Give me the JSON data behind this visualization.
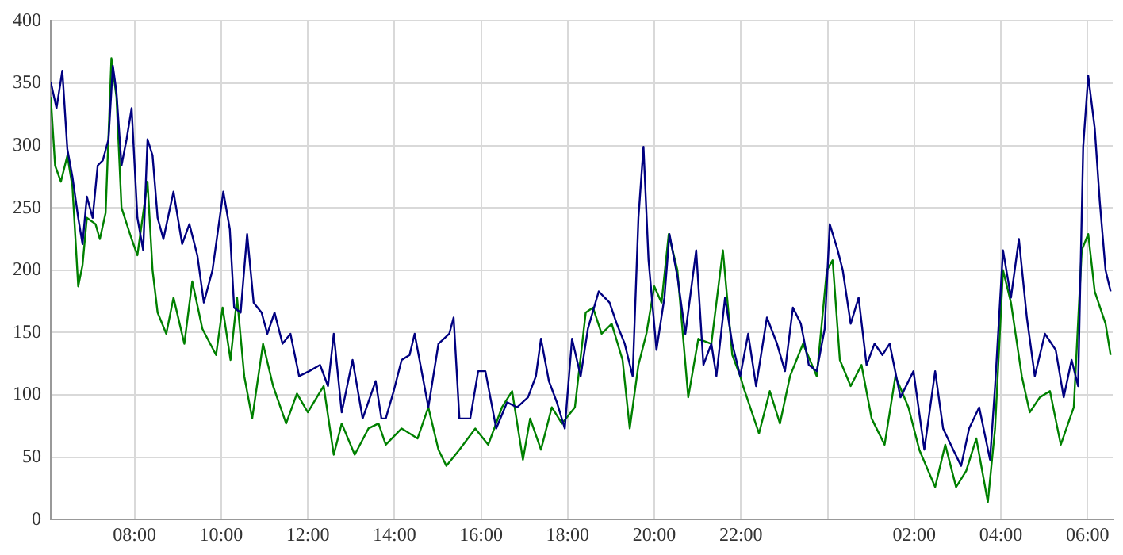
{
  "chart_data": {
    "type": "line",
    "xlim": [
      "--01-01T06:04",
      "--01-02T06:36"
    ],
    "ylim": [
      0,
      400
    ],
    "xticks": [
      {
        "value": "--01-01T08:00",
        "label": "08:00"
      },
      {
        "value": "--01-01T10:00",
        "label": "10:00"
      },
      {
        "value": "--01-01T12:00",
        "label": "12:00"
      },
      {
        "value": "--01-01T14:00",
        "label": "14:00"
      },
      {
        "value": "--01-01T16:00",
        "label": "16:00"
      },
      {
        "value": "--01-01T18:00",
        "label": "18:00"
      },
      {
        "value": "--01-01T20:00",
        "label": "20:00"
      },
      {
        "value": "--01-01T22:00",
        "label": "22:00"
      },
      {
        "value": "--01-02T00:00",
        "label": null
      },
      {
        "value": "--01-02T02:00",
        "label": "02:00"
      },
      {
        "value": "--01-02T04:00",
        "label": "04:00"
      },
      {
        "value": "--01-02T06:00",
        "label": "06:00"
      }
    ],
    "yticks": [
      0,
      50,
      100,
      150,
      200,
      250,
      300,
      350,
      400
    ],
    "grid": true,
    "legend": false,
    "marker": "none",
    "line_style": "solid",
    "series": [
      {
        "color": "#000080",
        "x": [
          "--01-01T06:04",
          "--01-01T06:12",
          "--01-01T06:20",
          "--01-01T06:27",
          "--01-01T06:34",
          "--01-01T06:42",
          "--01-01T06:48",
          "--01-01T06:54",
          "--01-01T07:02",
          "--01-01T07:09",
          "--01-01T07:16",
          "--01-01T07:24",
          "--01-01T07:30",
          "--01-01T07:35",
          "--01-01T07:42",
          "--01-01T07:49",
          "--01-01T07:56",
          "--01-01T08:04",
          "--01-01T08:12",
          "--01-01T08:18",
          "--01-01T08:25",
          "--01-01T08:32",
          "--01-01T08:40",
          "--01-01T08:54",
          "--01-01T09:06",
          "--01-01T09:16",
          "--01-01T09:27",
          "--01-01T09:36",
          "--01-01T09:48",
          "--01-01T10:03",
          "--01-01T10:12",
          "--01-01T10:18",
          "--01-01T10:27",
          "--01-01T10:36",
          "--01-01T10:45",
          "--01-01T10:56",
          "--01-01T11:04",
          "--01-01T11:14",
          "--01-01T11:25",
          "--01-01T11:36",
          "--01-01T11:48",
          "--01-01T12:02",
          "--01-01T12:17",
          "--01-01T12:28",
          "--01-01T12:36",
          "--01-01T12:47",
          "--01-01T13:02",
          "--01-01T13:16",
          "--01-01T13:34",
          "--01-01T13:42",
          "--01-01T13:48",
          "--01-01T13:59",
          "--01-01T14:10",
          "--01-01T14:21",
          "--01-01T14:28",
          "--01-01T14:39",
          "--01-01T14:47",
          "--01-01T15:01",
          "--01-01T15:16",
          "--01-01T15:22",
          "--01-01T15:30",
          "--01-01T15:45",
          "--01-01T15:56",
          "--01-01T16:06",
          "--01-01T16:21",
          "--01-01T16:36",
          "--01-01T16:50",
          "--01-01T17:05",
          "--01-01T17:16",
          "--01-01T17:23",
          "--01-01T17:34",
          "--01-01T17:45",
          "--01-01T17:56",
          "--01-01T18:06",
          "--01-01T18:18",
          "--01-01T18:28",
          "--01-01T18:43",
          "--01-01T18:58",
          "--01-01T19:08",
          "--01-01T19:19",
          "--01-01T19:30",
          "--01-01T19:38",
          "--01-01T19:45",
          "--01-01T19:52",
          "--01-01T20:03",
          "--01-01T20:14",
          "--01-01T20:21",
          "--01-01T20:32",
          "--01-01T20:43",
          "--01-01T20:58",
          "--01-01T21:08",
          "--01-01T21:19",
          "--01-01T21:26",
          "--01-01T21:38",
          "--01-01T21:48",
          "--01-01T21:59",
          "--01-01T22:10",
          "--01-01T22:21",
          "--01-01T22:36",
          "--01-01T22:50",
          "--01-01T23:01",
          "--01-01T23:12",
          "--01-01T23:23",
          "--01-01T23:34",
          "--01-01T23:45",
          "--01-01T23:56",
          "--01-02T00:03",
          "--01-02T00:14",
          "--01-02T00:21",
          "--01-02T00:32",
          "--01-02T00:43",
          "--01-02T00:54",
          "--01-02T01:05",
          "--01-02T01:16",
          "--01-02T01:26",
          "--01-02T01:41",
          "--01-02T01:59",
          "--01-02T02:14",
          "--01-02T02:29",
          "--01-02T02:40",
          "--01-02T02:54",
          "--01-02T03:05",
          "--01-02T03:16",
          "--01-02T03:30",
          "--01-02T03:45",
          "--01-02T03:52",
          "--01-02T04:03",
          "--01-02T04:14",
          "--01-02T04:25",
          "--01-02T04:36",
          "--01-02T04:47",
          "--01-02T05:01",
          "--01-02T05:16",
          "--01-02T05:27",
          "--01-02T05:38",
          "--01-02T05:47",
          "--01-02T05:54",
          "--01-02T06:01",
          "--01-02T06:10",
          "--01-02T06:17",
          "--01-02T06:25",
          "--01-02T06:32"
        ],
        "values": [
          351,
          330,
          360,
          297,
          275,
          242,
          221,
          259,
          242,
          284,
          288,
          305,
          364,
          343,
          284,
          305,
          330,
          242,
          216,
          305,
          292,
          242,
          225,
          263,
          221,
          237,
          212,
          174,
          200,
          263,
          233,
          170,
          166,
          229,
          174,
          166,
          149,
          166,
          141,
          149,
          115,
          119,
          124,
          107,
          149,
          86,
          128,
          81,
          111,
          81,
          81,
          103,
          128,
          132,
          149,
          115,
          90,
          141,
          149,
          162,
          81,
          81,
          119,
          119,
          73,
          94,
          90,
          98,
          115,
          145,
          111,
          94,
          73,
          145,
          115,
          153,
          183,
          174,
          157,
          141,
          115,
          242,
          299,
          208,
          136,
          178,
          229,
          195,
          149,
          216,
          124,
          141,
          115,
          178,
          141,
          115,
          149,
          107,
          162,
          141,
          119,
          170,
          157,
          124,
          119,
          153,
          237,
          216,
          200,
          157,
          178,
          124,
          141,
          132,
          141,
          98,
          119,
          56,
          119,
          73,
          56,
          43,
          73,
          90,
          48,
          107,
          216,
          178,
          225,
          162,
          115,
          149,
          136,
          98,
          128,
          107,
          299,
          356,
          314,
          255,
          200,
          183
        ]
      },
      {
        "color": "#008000",
        "x": [
          "--01-01T06:04",
          "--01-01T06:10",
          "--01-01T06:18",
          "--01-01T06:27",
          "--01-01T06:34",
          "--01-01T06:42",
          "--01-01T06:48",
          "--01-01T06:54",
          "--01-01T07:06",
          "--01-01T07:12",
          "--01-01T07:20",
          "--01-01T07:28",
          "--01-01T07:35",
          "--01-01T07:42",
          "--01-01T07:56",
          "--01-01T08:04",
          "--01-01T08:18",
          "--01-01T08:25",
          "--01-01T08:32",
          "--01-01T08:44",
          "--01-01T08:54",
          "--01-01T09:09",
          "--01-01T09:20",
          "--01-01T09:34",
          "--01-01T09:53",
          "--01-01T10:02",
          "--01-01T10:13",
          "--01-01T10:22",
          "--01-01T10:32",
          "--01-01T10:43",
          "--01-01T10:58",
          "--01-01T11:12",
          "--01-01T11:30",
          "--01-01T11:45",
          "--01-01T12:00",
          "--01-01T12:22",
          "--01-01T12:36",
          "--01-01T12:47",
          "--01-01T13:05",
          "--01-01T13:24",
          "--01-01T13:38",
          "--01-01T13:48",
          "--01-01T14:10",
          "--01-01T14:32",
          "--01-01T14:47",
          "--01-01T15:01",
          "--01-01T15:12",
          "--01-01T15:30",
          "--01-01T15:52",
          "--01-01T16:10",
          "--01-01T16:29",
          "--01-01T16:43",
          "--01-01T16:58",
          "--01-01T17:08",
          "--01-01T17:23",
          "--01-01T17:38",
          "--01-01T17:52",
          "--01-01T18:10",
          "--01-01T18:25",
          "--01-01T18:35",
          "--01-01T18:47",
          "--01-01T19:01",
          "--01-01T19:16",
          "--01-01T19:26",
          "--01-01T19:38",
          "--01-01T19:49",
          "--01-01T20:00",
          "--01-01T20:10",
          "--01-01T20:20",
          "--01-01T20:32",
          "--01-01T20:47",
          "--01-01T21:01",
          "--01-01T21:19",
          "--01-01T21:35",
          "--01-01T21:48",
          "--01-01T21:59",
          "--01-01T22:03",
          "--01-01T22:25",
          "--01-01T22:40",
          "--01-01T22:54",
          "--01-01T23:08",
          "--01-01T23:26",
          "--01-01T23:45",
          "--01-01T23:59",
          "--01-02T00:07",
          "--01-02T00:17",
          "--01-02T00:32",
          "--01-02T00:47",
          "--01-02T01:01",
          "--01-02T01:19",
          "--01-02T01:34",
          "--01-02T01:52",
          "--01-02T02:07",
          "--01-02T02:29",
          "--01-02T02:43",
          "--01-02T02:58",
          "--01-02T03:12",
          "--01-02T03:26",
          "--01-02T03:42",
          "--01-02T03:52",
          "--01-02T04:03",
          "--01-02T04:14",
          "--01-02T04:29",
          "--01-02T04:40",
          "--01-02T04:54",
          "--01-02T05:08",
          "--01-02T05:23",
          "--01-02T05:41",
          "--01-02T05:52",
          "--01-02T06:01",
          "--01-02T06:10",
          "--01-02T06:25",
          "--01-02T06:32"
        ],
        "values": [
          339,
          284,
          271,
          292,
          267,
          187,
          204,
          242,
          237,
          225,
          246,
          370,
          339,
          250,
          225,
          212,
          271,
          200,
          166,
          149,
          178,
          141,
          191,
          153,
          132,
          170,
          128,
          178,
          115,
          81,
          141,
          107,
          77,
          101,
          86,
          107,
          52,
          77,
          52,
          73,
          77,
          60,
          73,
          65,
          90,
          56,
          43,
          56,
          73,
          60,
          90,
          103,
          48,
          81,
          56,
          90,
          77,
          90,
          166,
          170,
          149,
          157,
          128,
          73,
          124,
          149,
          187,
          174,
          229,
          200,
          98,
          145,
          141,
          216,
          132,
          115,
          107,
          69,
          103,
          77,
          115,
          141,
          115,
          200,
          208,
          128,
          107,
          124,
          81,
          60,
          115,
          90,
          56,
          26,
          60,
          26,
          39,
          65,
          14,
          73,
          200,
          174,
          115,
          86,
          98,
          103,
          60,
          90,
          216,
          229,
          183,
          157,
          132
        ]
      }
    ]
  }
}
